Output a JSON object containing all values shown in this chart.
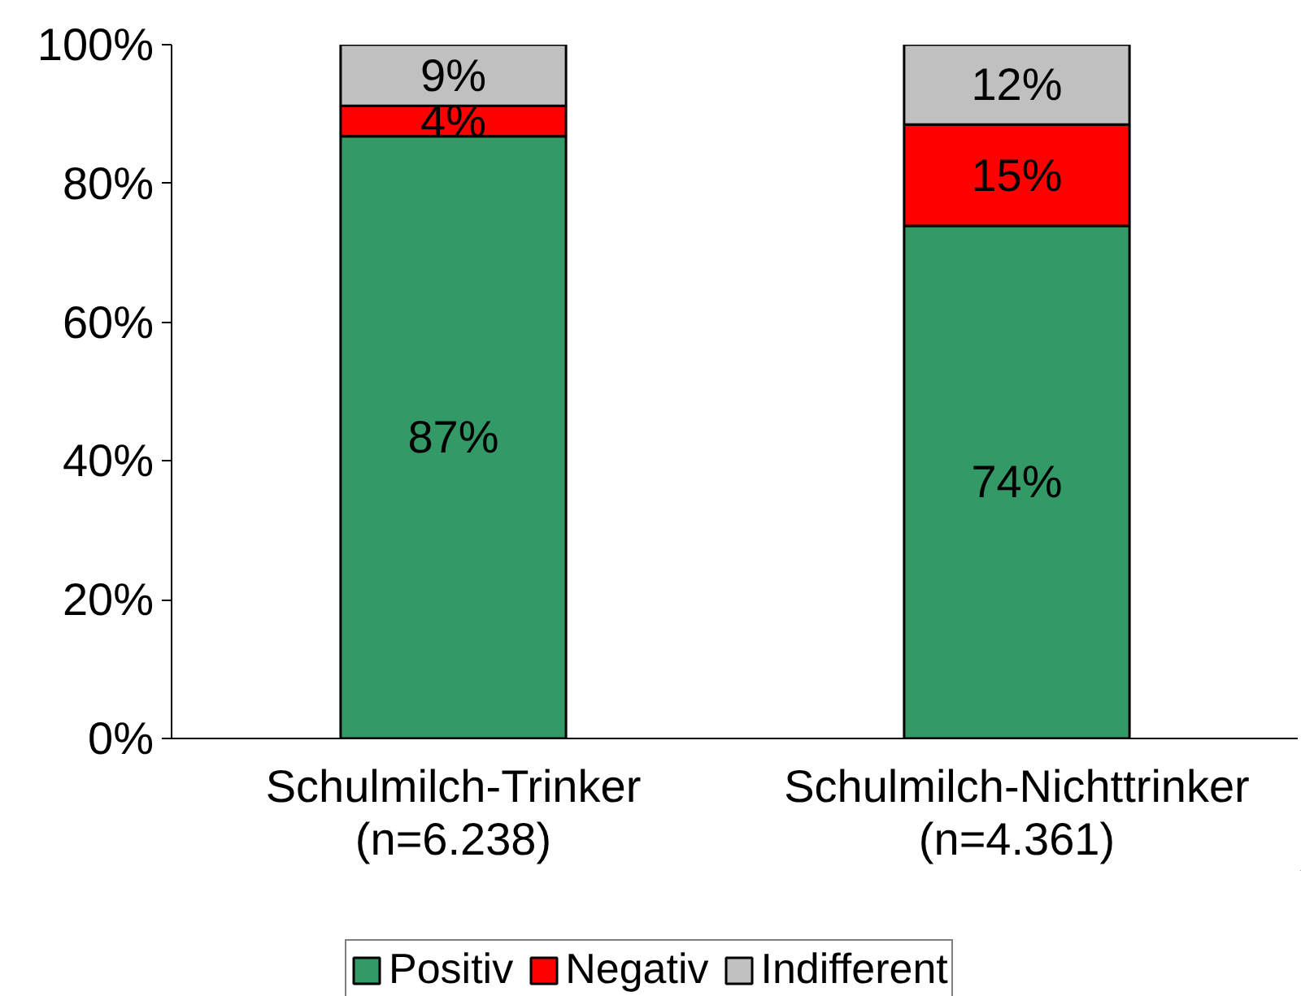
{
  "chart_data": {
    "type": "bar",
    "stacked": true,
    "categories": [
      "Schulmilch-Trinker\n(n=6.238)",
      "Schulmilch-Nichttrinker\n(n=4.361)"
    ],
    "series": [
      {
        "name": "Positiv",
        "color": "#339966",
        "values": [
          86.8,
          73.9
        ],
        "value_labels": [
          "87%",
          "74%"
        ]
      },
      {
        "name": "Negativ",
        "color": "#ff0000",
        "values": [
          4.4,
          14.6
        ],
        "value_labels": [
          "4%",
          "15%"
        ]
      },
      {
        "name": "Indifferent",
        "color": "#c0c0c0",
        "values": [
          8.8,
          11.5
        ],
        "value_labels": [
          "9%",
          "12%"
        ]
      }
    ],
    "ylim": [
      0,
      100
    ],
    "yticks": [
      {
        "value": 0,
        "label": "0%"
      },
      {
        "value": 20,
        "label": "20%"
      },
      {
        "value": 40,
        "label": "40%"
      },
      {
        "value": 60,
        "label": "60%"
      },
      {
        "value": 80,
        "label": "80%"
      },
      {
        "value": 100,
        "label": "100%"
      }
    ],
    "grid": false,
    "legend": "bottom"
  }
}
